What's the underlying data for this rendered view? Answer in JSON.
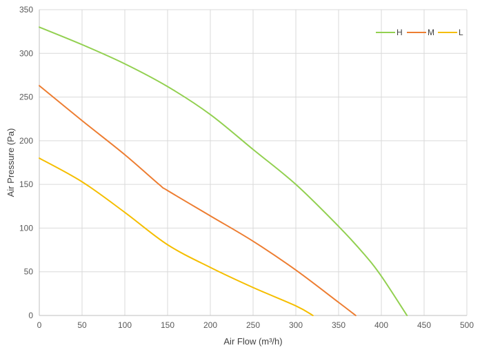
{
  "chart_data": {
    "type": "line",
    "xlabel": "Air Flow  (m³/h)",
    "ylabel": "Air Pressure  (Pa)",
    "xlim": [
      0,
      500
    ],
    "ylim": [
      0,
      350
    ],
    "xticks": [
      0,
      50,
      100,
      150,
      200,
      250,
      300,
      350,
      400,
      450,
      500
    ],
    "yticks": [
      0,
      50,
      100,
      150,
      200,
      250,
      300,
      350
    ],
    "grid": true,
    "legend_position": "top-right",
    "series": [
      {
        "name": "H",
        "color": "#92d050",
        "x": [
          0,
          50,
          100,
          150,
          200,
          250,
          300,
          350,
          380,
          400,
          430
        ],
        "y": [
          330,
          310,
          288,
          262,
          230,
          190,
          150,
          102,
          70,
          45,
          0
        ]
      },
      {
        "name": "M",
        "color": "#ed7d31",
        "x": [
          0,
          50,
          100,
          140,
          150,
          200,
          250,
          300,
          350,
          370
        ],
        "y": [
          263,
          223,
          184,
          150,
          143,
          114,
          85,
          52,
          15,
          0
        ]
      },
      {
        "name": "L",
        "color": "#f5be00",
        "x": [
          0,
          50,
          100,
          150,
          200,
          250,
          300,
          320
        ],
        "y": [
          180,
          153,
          118,
          81,
          55,
          32,
          11,
          0
        ]
      }
    ]
  }
}
